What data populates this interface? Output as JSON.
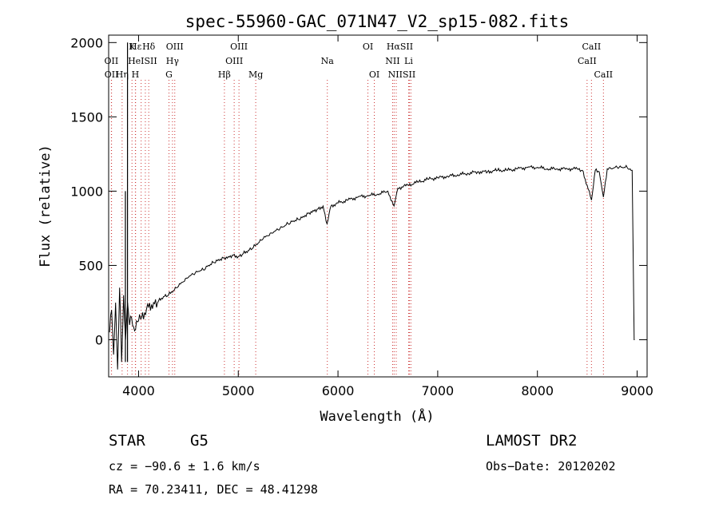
{
  "chart_data": {
    "type": "line",
    "title": "spec-55960-GAC_071N47_V2_sp15-082.fits",
    "xlabel": "Wavelength (Å)",
    "ylabel": "Flux (relative)",
    "xlim": [
      3700,
      9100
    ],
    "ylim": [
      -250,
      2050
    ],
    "xticks": [
      4000,
      5000,
      6000,
      7000,
      8000,
      9000
    ],
    "yticks": [
      0,
      500,
      1000,
      1500,
      2000
    ],
    "xtick_labels": [
      "4000",
      "5000",
      "6000",
      "7000",
      "8000",
      "9000"
    ],
    "ytick_labels": [
      "0",
      "500",
      "1000",
      "1500",
      "2000"
    ],
    "grid": false,
    "line_color": "#000000",
    "marker_color": "#cc3333",
    "series": [
      {
        "x": [
          3710,
          3730,
          3750,
          3770,
          3790,
          3810,
          3830,
          3850,
          3870,
          3890,
          3910,
          3930,
          3960,
          3990,
          4020,
          4060,
          4100,
          4150,
          4200,
          4250,
          4300,
          4350,
          4400,
          4450,
          4500,
          4550,
          4600,
          4650,
          4700,
          4750,
          4800,
          4850,
          4900,
          4950,
          5000,
          5050,
          5100,
          5150,
          5200,
          5250,
          5300,
          5350,
          5400,
          5450,
          5500,
          5550,
          5600,
          5650,
          5700,
          5750,
          5800,
          5850,
          5890,
          5930,
          6000,
          6100,
          6200,
          6300,
          6400,
          6500,
          6562,
          6600,
          6700,
          6800,
          6900,
          7000,
          7100,
          7200,
          7300,
          7400,
          7500,
          7600,
          7700,
          7800,
          7900,
          8000,
          8100,
          8200,
          8300,
          8400,
          8450,
          8498,
          8542,
          8580,
          8620,
          8662,
          8700,
          8750,
          8800,
          8850,
          8900,
          8930,
          8950,
          8960,
          8970,
          8975
        ],
        "y": [
          50,
          200,
          -100,
          250,
          -200,
          350,
          -150,
          300,
          0,
          250,
          100,
          150,
          60,
          120,
          140,
          180,
          220,
          250,
          260,
          290,
          300,
          330,
          360,
          390,
          420,
          440,
          460,
          470,
          500,
          520,
          540,
          550,
          560,
          570,
          560,
          580,
          600,
          620,
          650,
          680,
          700,
          720,
          740,
          760,
          780,
          800,
          810,
          830,
          850,
          870,
          880,
          900,
          780,
          900,
          920,
          940,
          960,
          970,
          980,
          1000,
          900,
          1020,
          1040,
          1060,
          1080,
          1090,
          1100,
          1110,
          1120,
          1130,
          1130,
          1140,
          1140,
          1150,
          1160,
          1160,
          1150,
          1150,
          1150,
          1150,
          1140,
          1040,
          940,
          1140,
          1130,
          960,
          1150,
          1150,
          1160,
          1160,
          1160,
          1150,
          1140,
          600,
          0,
          0
        ]
      }
    ],
    "spikes": [
      {
        "x": 3868,
        "y": 1000
      },
      {
        "x": 3889,
        "y": 2000
      }
    ],
    "line_labels": [
      {
        "text": "Hε",
        "x": 3970,
        "row": 1
      },
      {
        "text": "K",
        "x": 3934,
        "row": 1
      },
      {
        "text": "Hδ",
        "x": 4102,
        "row": 1
      },
      {
        "text": "OIII",
        "x": 4363,
        "row": 1
      },
      {
        "text": "OIII",
        "x": 5007,
        "row": 1
      },
      {
        "text": "OI",
        "x": 6300,
        "row": 1
      },
      {
        "text": "HαSII",
        "x": 6620,
        "row": 1
      },
      {
        "text": "CaII",
        "x": 8542,
        "row": 1
      },
      {
        "text": "OII",
        "x": 3727,
        "row": 2
      },
      {
        "text": "HeISII",
        "x": 4040,
        "row": 2
      },
      {
        "text": "Hγ",
        "x": 4340,
        "row": 2
      },
      {
        "text": "OIII",
        "x": 4959,
        "row": 2
      },
      {
        "text": "Na",
        "x": 5893,
        "row": 2
      },
      {
        "text": "NII",
        "x": 6548,
        "row": 2
      },
      {
        "text": "Li",
        "x": 6708,
        "row": 2
      },
      {
        "text": "CaII",
        "x": 8498,
        "row": 2
      },
      {
        "text": "OII",
        "x": 3729,
        "row": 3
      },
      {
        "text": "Hη",
        "x": 3835,
        "row": 3
      },
      {
        "text": "H",
        "x": 3968,
        "row": 3
      },
      {
        "text": "G",
        "x": 4305,
        "row": 3
      },
      {
        "text": "Hβ",
        "x": 4861,
        "row": 3
      },
      {
        "text": "Mg",
        "x": 5175,
        "row": 3
      },
      {
        "text": "OI",
        "x": 6364,
        "row": 3
      },
      {
        "text": "NIISII",
        "x": 6640,
        "row": 3
      },
      {
        "text": "CaII",
        "x": 8662,
        "row": 3
      }
    ],
    "line_markers": [
      3727,
      3729,
      3835,
      3889,
      3934,
      3968,
      3970,
      4026,
      4068,
      4102,
      4305,
      4340,
      4363,
      4861,
      4959,
      5007,
      5175,
      5893,
      6300,
      6364,
      6548,
      6563,
      6584,
      6708,
      6717,
      6731,
      8498,
      8542,
      8662
    ]
  },
  "info": {
    "object_class": "STAR",
    "subclass": "G5",
    "survey": "LAMOST DR2",
    "velocity": "cz = −90.6 ± 1.6 km/s",
    "obs_date": "Obs−Date: 20120202",
    "coordinates": "RA =  70.23411, DEC =  48.41298"
  }
}
